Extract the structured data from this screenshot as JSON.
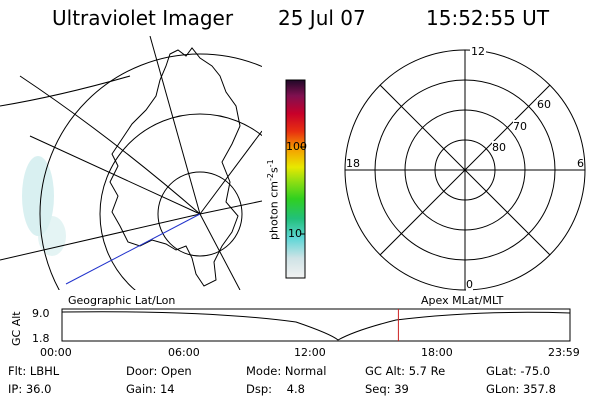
{
  "header": {
    "instrument": "Ultraviolet Imager",
    "date": "25 Jul 07",
    "time": "15:52:55 UT"
  },
  "colorbar": {
    "label": "photon cm",
    "exp1": "-2",
    "mid": "s",
    "exp2": "-1",
    "ticks": [
      "100",
      "10"
    ]
  },
  "polar_plot": {
    "mlt_labels": {
      "top": "12",
      "left": "18",
      "right": "6",
      "bottom": "0"
    },
    "lat_labels": [
      "60",
      "70",
      "80"
    ]
  },
  "panels": {
    "left_caption": "Geographic Lat/Lon",
    "right_caption": "Apex MLat/MLT"
  },
  "altitude_plot": {
    "ylabel": "GC Alt",
    "yticks": [
      "9.0",
      "1.8"
    ],
    "xticks": [
      "00:00",
      "06:00",
      "12:00",
      "18:00",
      "23:59"
    ],
    "marker_time": "15:52:55",
    "marker_color": "#cc2222"
  },
  "info": {
    "filter_label": "Flt:",
    "filter_value": "LBHL",
    "door_label": "Door:",
    "door_value": "Open",
    "mode_label": "Mode:",
    "mode_value": "Normal",
    "gcalt_label": "GC Alt:",
    "gcalt_value": "5.7 Re",
    "glat_label": "GLat:",
    "glat_value": "-75.0",
    "ip_label": "IP:",
    "ip_value": "36.0",
    "gain_label": "Gain:",
    "gain_value": "14",
    "dsp_label": "Dsp:",
    "dsp_value": "4.8",
    "seq_label": "Seq:",
    "seq_value": "39",
    "glon_label": "GLon:",
    "glon_value": "357.8"
  }
}
